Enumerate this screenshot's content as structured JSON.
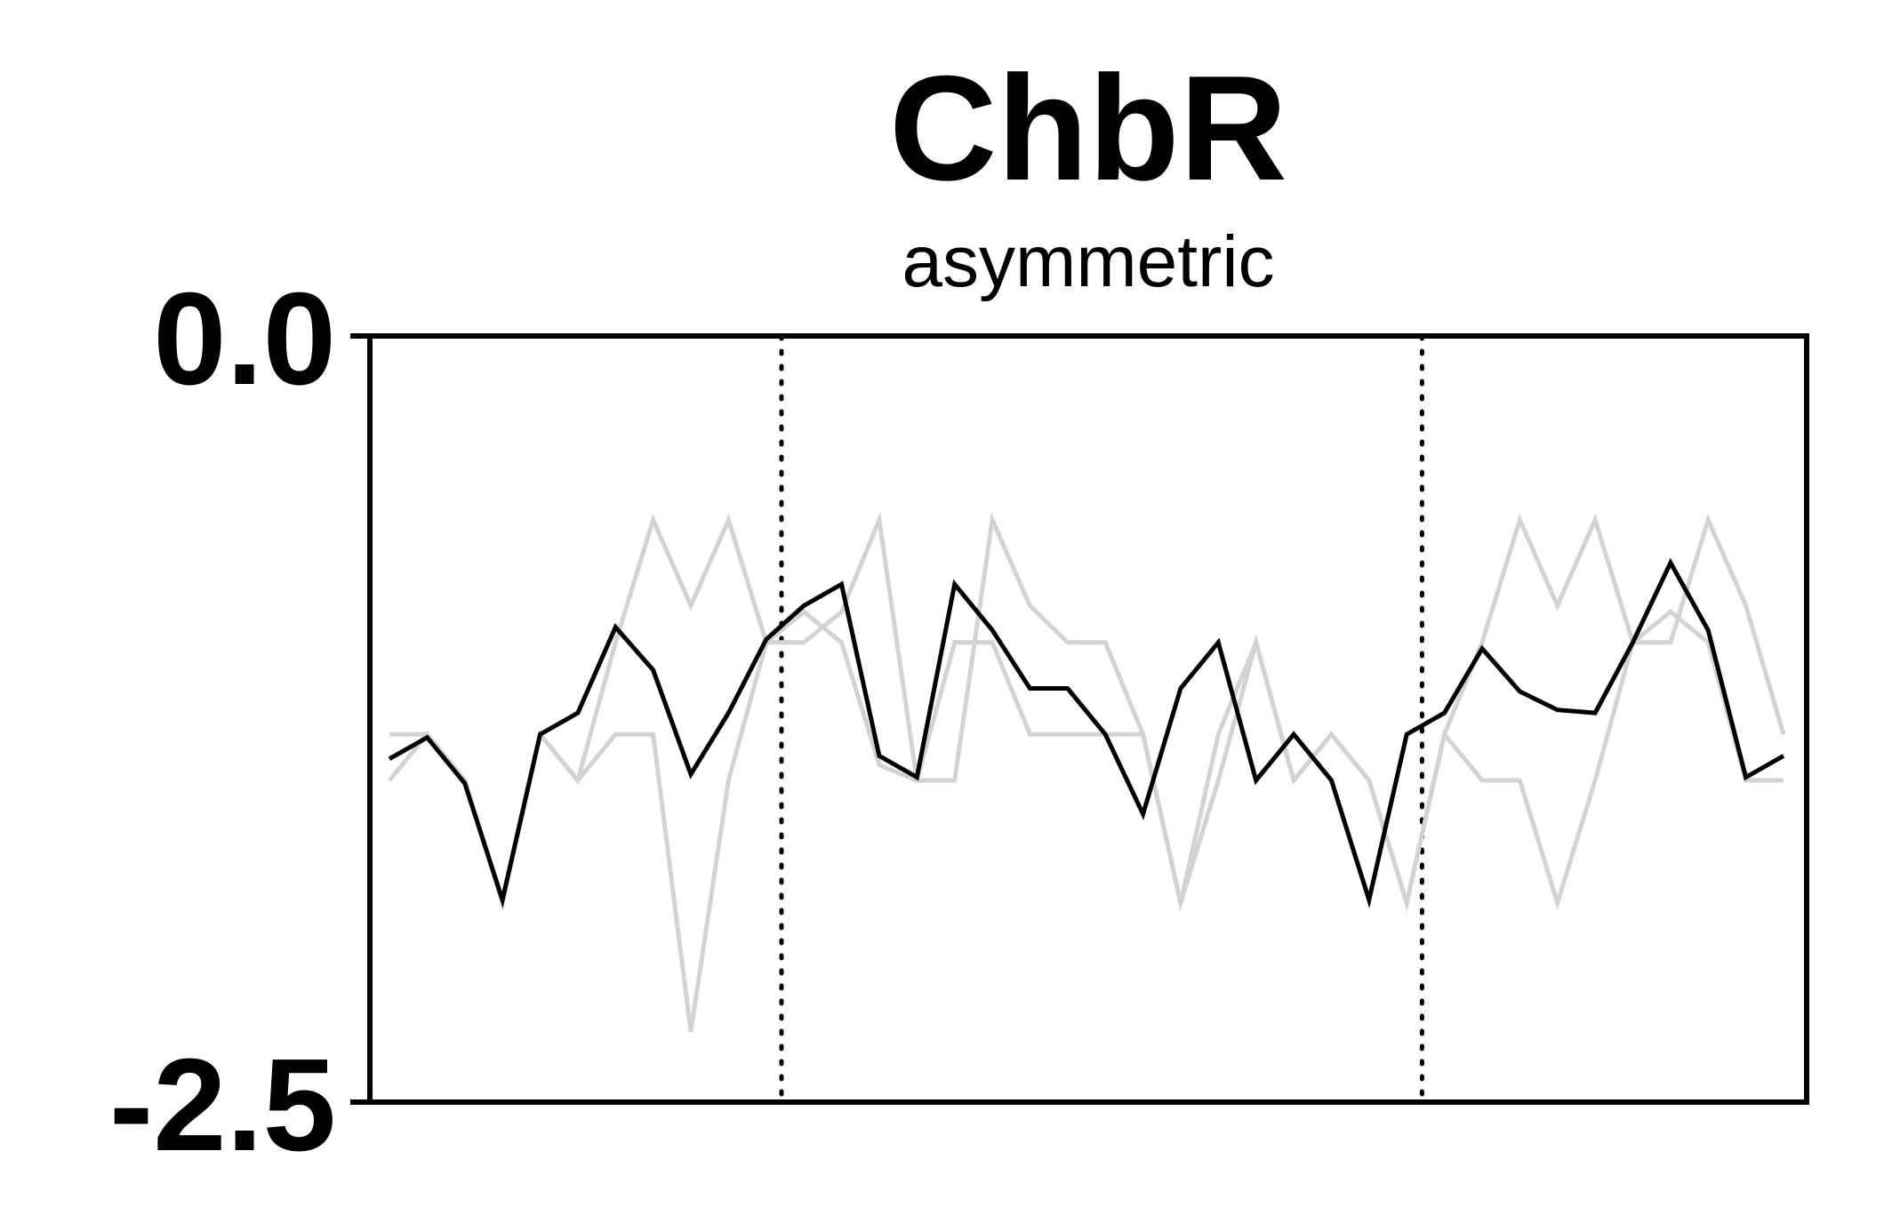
{
  "chart_data": {
    "type": "line",
    "title": "ChbR",
    "subtitle": "asymmetric",
    "xlabel": "",
    "ylabel": "",
    "ylim": [
      -2.5,
      0.0
    ],
    "y_tick_labels": [
      "0.0",
      "-2.5"
    ],
    "y_ticks": [
      0.0,
      -2.5
    ],
    "xlim": [
      0,
      38
    ],
    "grid": false,
    "markers": {
      "style": "dotted-vertical",
      "x": [
        10.5,
        27.5
      ]
    },
    "colors": {
      "band": "#d3d3d3",
      "mean": "#000000",
      "axes": "#000000"
    },
    "series": [
      {
        "role": "upper-band",
        "x": [
          0,
          1,
          2,
          3,
          4,
          5,
          6,
          7,
          8,
          9,
          10,
          11,
          12,
          13,
          14,
          15,
          16,
          17,
          18,
          19,
          20,
          21,
          22,
          23,
          24,
          25,
          26,
          27,
          28,
          29,
          30,
          31,
          32,
          33,
          34,
          35,
          36,
          37
        ],
        "values": [
          -1.3,
          -1.3,
          -1.45,
          -1.85,
          -1.3,
          -1.45,
          -1.0,
          -0.6,
          -0.88,
          -0.6,
          -1.0,
          -1.0,
          -0.9,
          -0.6,
          -1.45,
          -1.45,
          -0.6,
          -0.88,
          -1.0,
          -1.0,
          -1.3,
          -1.85,
          -1.3,
          -1.0,
          -1.45,
          -1.3,
          -1.45,
          -1.85,
          -1.3,
          -1.0,
          -0.6,
          -0.88,
          -0.6,
          -1.0,
          -1.0,
          -0.6,
          -0.88,
          -1.3
        ]
      },
      {
        "role": "lower-band",
        "x": [
          0,
          1,
          2,
          3,
          4,
          5,
          6,
          7,
          8,
          9,
          10,
          11,
          12,
          13,
          14,
          15,
          16,
          17,
          18,
          19,
          20,
          21,
          22,
          23,
          24,
          25,
          26,
          27,
          28,
          29,
          30,
          31,
          32,
          33,
          34,
          35,
          36,
          37
        ],
        "values": [
          -1.45,
          -1.3,
          -1.45,
          -1.85,
          -1.3,
          -1.45,
          -1.3,
          -1.3,
          -2.27,
          -1.45,
          -1.0,
          -0.9,
          -1.0,
          -1.4,
          -1.45,
          -1.0,
          -1.0,
          -1.3,
          -1.3,
          -1.3,
          -1.3,
          -1.85,
          -1.45,
          -1.0,
          -1.45,
          -1.3,
          -1.45,
          -1.85,
          -1.3,
          -1.45,
          -1.45,
          -1.85,
          -1.45,
          -1.0,
          -0.9,
          -1.0,
          -1.45,
          -1.45
        ]
      },
      {
        "role": "mean",
        "x": [
          0,
          1,
          2,
          3,
          4,
          5,
          6,
          7,
          8,
          9,
          10,
          11,
          12,
          13,
          14,
          15,
          16,
          17,
          18,
          19,
          20,
          21,
          22,
          23,
          24,
          25,
          26,
          27,
          28,
          29,
          30,
          31,
          32,
          33,
          34,
          35,
          36,
          37
        ],
        "values": [
          -1.38,
          -1.31,
          -1.46,
          -1.84,
          -1.3,
          -1.23,
          -0.95,
          -1.09,
          -1.43,
          -1.23,
          -0.99,
          -0.88,
          -0.81,
          -1.37,
          -1.44,
          -0.81,
          -0.96,
          -1.15,
          -1.15,
          -1.3,
          -1.56,
          -1.15,
          -1.0,
          -1.45,
          -1.3,
          -1.45,
          -1.84,
          -1.3,
          -1.23,
          -1.02,
          -1.16,
          -1.22,
          -1.23,
          -1.0,
          -0.74,
          -0.96,
          -1.44,
          -1.37
        ]
      }
    ]
  }
}
